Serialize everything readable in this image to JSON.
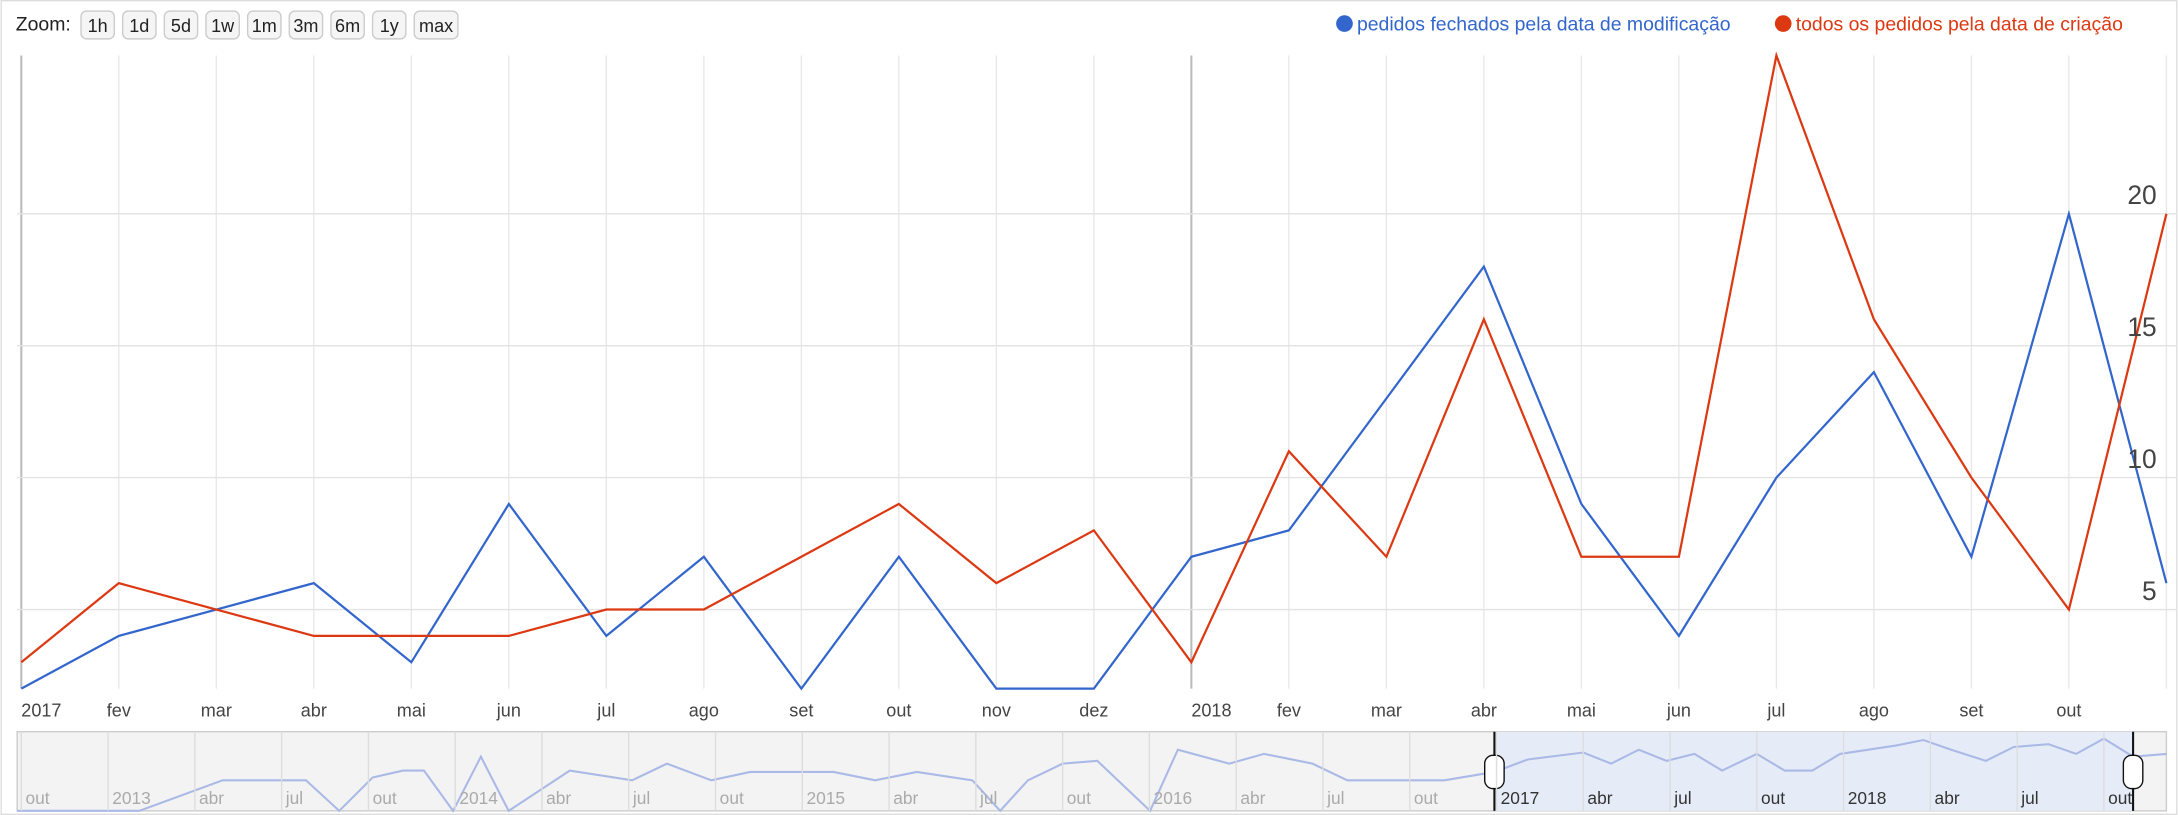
{
  "chart_data": {
    "type": "line",
    "zoom_label": "Zoom:",
    "zoom_buttons": [
      "1h",
      "1d",
      "5d",
      "1w",
      "1m",
      "3m",
      "6m",
      "1y",
      "max"
    ],
    "categories": [
      "2017",
      "fev",
      "mar",
      "abr",
      "mai",
      "jun",
      "jul",
      "ago",
      "set",
      "out",
      "nov",
      "dez",
      "2018",
      "fev",
      "mar",
      "abr",
      "mai",
      "jun",
      "jul",
      "ago",
      "set",
      "out",
      null
    ],
    "series": [
      {
        "name": "pedidos fechados pela data de modificação",
        "color": "#3366cc",
        "values": [
          2,
          4,
          5,
          6,
          3,
          9,
          4,
          7,
          2,
          7,
          2,
          2,
          7,
          8,
          13,
          18,
          9,
          4,
          10,
          14,
          7,
          20,
          6
        ]
      },
      {
        "name": "todos os pedidos pela data de criação",
        "color": "#dc3912",
        "values": [
          3,
          6,
          5,
          4,
          4,
          4,
          5,
          5,
          7,
          9,
          6,
          8,
          3,
          11,
          7,
          16,
          7,
          7,
          26,
          16,
          10,
          5,
          20
        ]
      }
    ],
    "ylim": [
      2,
      26
    ],
    "yticks": [
      5,
      10,
      15,
      20
    ],
    "grid": true,
    "legend": "top-right",
    "navigator": {
      "labels": [
        "out",
        "2013",
        "abr",
        "jul",
        "out",
        "2014",
        "abr",
        "jul",
        "out",
        "2015",
        "abr",
        "jul",
        "out",
        "2016",
        "abr",
        "jul",
        "out",
        "2017",
        "abr",
        "jul",
        "out",
        "2018",
        "abr",
        "jul",
        "out"
      ]
    }
  }
}
